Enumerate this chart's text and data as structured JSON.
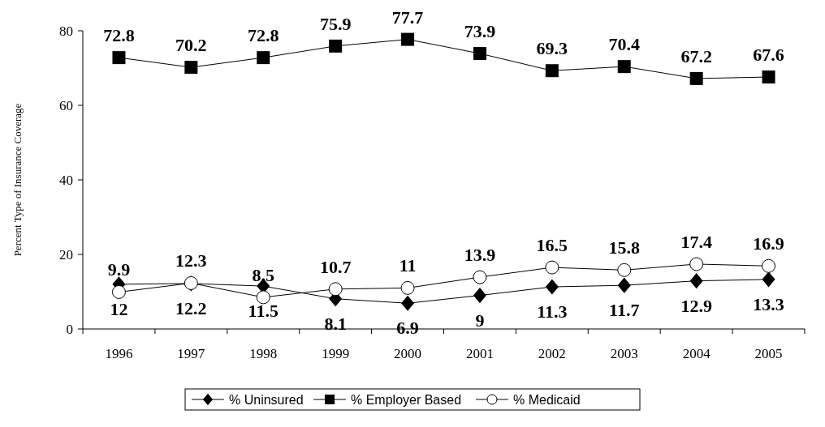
{
  "chart_data": {
    "type": "line",
    "ylabel": "Percent Type of Insurance Coverage",
    "categories": [
      "1996",
      "1997",
      "1998",
      "1999",
      "2000",
      "2001",
      "2002",
      "2003",
      "2004",
      "2005"
    ],
    "series": [
      {
        "name": "% Uninsured",
        "color": "#000000",
        "marker": "diamond",
        "values": [
          12,
          12.2,
          11.5,
          8.1,
          6.9,
          9,
          11.3,
          11.7,
          12.9,
          13.3
        ]
      },
      {
        "name": "% Employer Based",
        "color": "#000000",
        "marker": "square",
        "values": [
          72.8,
          70.2,
          72.8,
          75.9,
          77.7,
          73.9,
          69.3,
          70.4,
          67.2,
          67.6
        ]
      },
      {
        "name": "% Medicaid",
        "color": "#000000",
        "marker": "circle",
        "values": [
          9.9,
          12.3,
          8.5,
          10.7,
          11,
          13.9,
          16.5,
          15.8,
          17.4,
          16.9
        ]
      }
    ],
    "ylim": [
      0,
      80
    ],
    "yticks": [
      0,
      20,
      40,
      60,
      80
    ],
    "grid": false,
    "legend": "bottom",
    "data_labels": true,
    "line_style": "solid"
  }
}
